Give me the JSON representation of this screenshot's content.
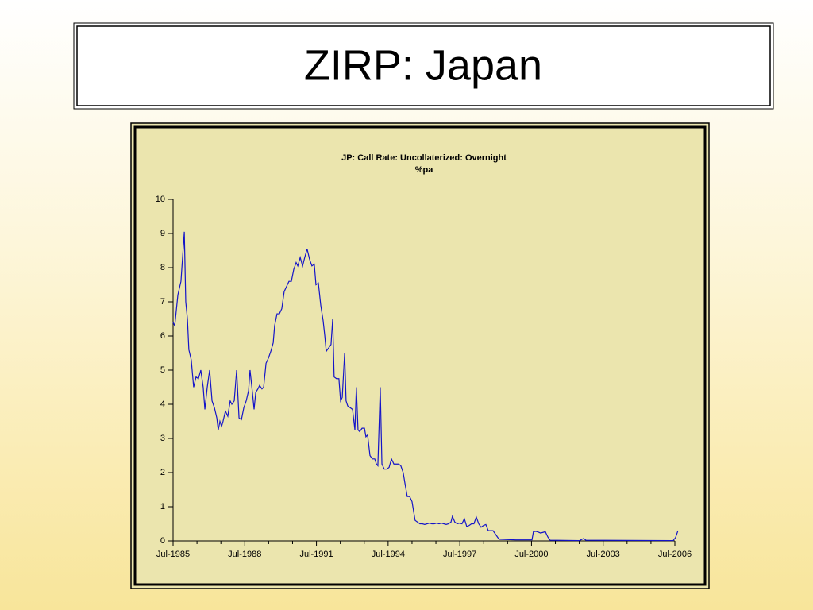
{
  "title": "ZIRP: Japan",
  "chart_data": {
    "type": "line",
    "title": "JP: Call Rate: Uncollaterized: Overnight",
    "subtitle": "%pa",
    "color": "#1414c8",
    "xlim": [
      1985.5,
      2006.5
    ],
    "xticks": [
      {
        "value": 1985.5,
        "label": "Jul-1985"
      },
      {
        "value": 1988.5,
        "label": "Jul-1988"
      },
      {
        "value": 1991.5,
        "label": "Jul-1991"
      },
      {
        "value": 1994.5,
        "label": "Jul-1994"
      },
      {
        "value": 1997.5,
        "label": "Jul-1997"
      },
      {
        "value": 2000.5,
        "label": "Jul-2000"
      },
      {
        "value": 2003.5,
        "label": "Jul-2003"
      },
      {
        "value": 2006.5,
        "label": "Jul-2006"
      }
    ],
    "xminorticks": [
      1986.5,
      1987.5,
      1989.5,
      1990.5,
      1992.5,
      1993.5,
      1995.5,
      1996.5,
      1998.5,
      1999.5,
      2001.5,
      2002.5,
      2004.5,
      2005.5
    ],
    "ylim": [
      0,
      10
    ],
    "yticks": [
      0,
      1,
      2,
      3,
      4,
      5,
      6,
      7,
      8,
      9,
      10
    ],
    "x": [
      1985.5,
      1985.57,
      1985.7,
      1985.83,
      1985.97,
      1986.03,
      1986.1,
      1986.16,
      1986.26,
      1986.36,
      1986.46,
      1986.56,
      1986.66,
      1986.76,
      1986.83,
      1986.93,
      1987.03,
      1987.13,
      1987.23,
      1987.33,
      1987.39,
      1987.46,
      1987.53,
      1987.59,
      1987.69,
      1987.79,
      1987.89,
      1987.96,
      1988.06,
      1988.16,
      1988.26,
      1988.36,
      1988.46,
      1988.56,
      1988.66,
      1988.72,
      1988.82,
      1988.89,
      1988.96,
      1989.05,
      1989.12,
      1989.22,
      1989.29,
      1989.39,
      1989.49,
      1989.59,
      1989.69,
      1989.75,
      1989.85,
      1989.95,
      1990.05,
      1990.15,
      1990.25,
      1990.35,
      1990.45,
      1990.55,
      1990.65,
      1990.72,
      1990.82,
      1990.92,
      1991.01,
      1991.11,
      1991.21,
      1991.31,
      1991.41,
      1991.48,
      1991.58,
      1991.68,
      1991.78,
      1991.85,
      1991.91,
      1992.01,
      1992.11,
      1992.18,
      1992.24,
      1992.34,
      1992.44,
      1992.51,
      1992.58,
      1992.68,
      1992.74,
      1992.81,
      1992.91,
      1993.01,
      1993.11,
      1993.17,
      1993.24,
      1993.31,
      1993.41,
      1993.51,
      1993.57,
      1993.64,
      1993.74,
      1993.84,
      1993.94,
      1994.01,
      1994.07,
      1994.17,
      1994.24,
      1994.34,
      1994.44,
      1994.54,
      1994.64,
      1994.74,
      1994.84,
      1994.94,
      1995.03,
      1995.13,
      1995.2,
      1995.3,
      1995.4,
      1995.5,
      1995.57,
      1995.63,
      1995.73,
      1995.83,
      1995.93,
      1996.03,
      1996.13,
      1996.23,
      1996.33,
      1996.43,
      1996.53,
      1996.63,
      1996.73,
      1996.83,
      1996.93,
      1997.03,
      1997.13,
      1997.19,
      1997.29,
      1997.39,
      1997.49,
      1997.59,
      1997.69,
      1997.79,
      1997.89,
      1997.99,
      1998.09,
      1998.19,
      1998.29,
      1998.39,
      1998.49,
      1998.59,
      1998.69,
      1998.79,
      1998.89,
      1998.99,
      1999.09,
      1999.15,
      1999.85,
      2000.52,
      2000.58,
      2000.68,
      2000.78,
      2000.88,
      2000.98,
      2001.08,
      2001.18,
      2001.28,
      2002.51,
      2002.68,
      2002.78,
      2006.33,
      2006.43,
      2006.53,
      2006.63
    ],
    "values": [
      6.4,
      6.3,
      7.2,
      7.6,
      9.05,
      7.0,
      6.5,
      5.6,
      5.3,
      4.5,
      4.8,
      4.75,
      5.0,
      4.5,
      3.85,
      4.5,
      5.0,
      4.1,
      3.9,
      3.6,
      3.25,
      3.5,
      3.35,
      3.5,
      3.8,
      3.65,
      4.1,
      4.0,
      4.1,
      5.0,
      3.6,
      3.55,
      3.9,
      4.1,
      4.4,
      5.0,
      4.35,
      3.85,
      4.35,
      4.45,
      4.55,
      4.45,
      4.5,
      5.2,
      5.35,
      5.55,
      5.8,
      6.3,
      6.65,
      6.65,
      6.8,
      7.3,
      7.45,
      7.6,
      7.6,
      7.95,
      8.15,
      8.05,
      8.3,
      8.05,
      8.3,
      8.55,
      8.25,
      8.05,
      8.1,
      7.5,
      7.55,
      6.9,
      6.45,
      6.0,
      5.55,
      5.65,
      5.75,
      6.5,
      4.8,
      4.75,
      4.75,
      4.1,
      4.2,
      5.5,
      4.1,
      3.95,
      3.9,
      3.85,
      3.25,
      4.5,
      3.25,
      3.2,
      3.3,
      3.3,
      3.05,
      3.1,
      2.5,
      2.4,
      2.4,
      2.25,
      2.2,
      4.5,
      2.25,
      2.1,
      2.1,
      2.15,
      2.4,
      2.25,
      2.25,
      2.25,
      2.2,
      2.0,
      1.7,
      1.3,
      1.3,
      1.15,
      0.85,
      0.6,
      0.55,
      0.5,
      0.5,
      0.48,
      0.5,
      0.52,
      0.5,
      0.5,
      0.52,
      0.5,
      0.52,
      0.5,
      0.48,
      0.5,
      0.55,
      0.72,
      0.55,
      0.5,
      0.52,
      0.5,
      0.65,
      0.42,
      0.45,
      0.5,
      0.5,
      0.7,
      0.5,
      0.4,
      0.45,
      0.48,
      0.3,
      0.3,
      0.3,
      0.2,
      0.1,
      0.05,
      0.03,
      0.03,
      0.27,
      0.28,
      0.26,
      0.23,
      0.25,
      0.27,
      0.12,
      0.02,
      0.01,
      0.07,
      0.02,
      0.01,
      0.01,
      0.1,
      0.3
    ]
  }
}
